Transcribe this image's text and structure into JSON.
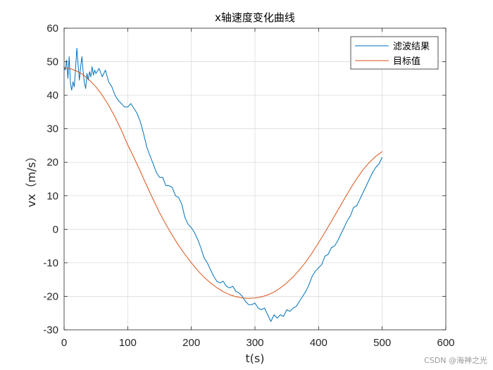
{
  "chart_data": {
    "type": "line",
    "title": "x轴速度变化曲线",
    "xlabel": "t(s)",
    "ylabel": "vx（m/s）",
    "xlim": [
      0,
      600
    ],
    "ylim": [
      -30,
      60
    ],
    "xticks": [
      0,
      100,
      200,
      300,
      400,
      500,
      600
    ],
    "yticks": [
      -30,
      -20,
      -10,
      0,
      10,
      20,
      30,
      40,
      50,
      60
    ],
    "grid": true,
    "legend_position": "top-right",
    "series": [
      {
        "name": "滤波结果",
        "color": "#0072BD",
        "x": [
          0,
          2,
          4,
          6,
          8,
          10,
          12,
          14,
          16,
          18,
          20,
          22,
          24,
          26,
          28,
          30,
          32,
          34,
          36,
          38,
          40,
          42,
          44,
          46,
          48,
          50,
          55,
          60,
          65,
          70,
          75,
          80,
          85,
          90,
          95,
          100,
          105,
          110,
          115,
          120,
          125,
          130,
          135,
          140,
          145,
          150,
          155,
          160,
          165,
          170,
          175,
          180,
          185,
          190,
          195,
          200,
          205,
          210,
          215,
          220,
          225,
          230,
          235,
          240,
          245,
          250,
          255,
          260,
          265,
          270,
          275,
          280,
          285,
          290,
          295,
          300,
          305,
          310,
          315,
          320,
          325,
          330,
          335,
          340,
          345,
          350,
          355,
          360,
          365,
          370,
          375,
          380,
          385,
          390,
          395,
          400,
          405,
          410,
          415,
          420,
          425,
          430,
          435,
          440,
          445,
          450,
          455,
          460,
          465,
          470,
          475,
          480,
          485,
          490,
          495,
          500
        ],
        "values": [
          48.5,
          47.5,
          50.5,
          45.0,
          51.5,
          43.5,
          41.5,
          44.0,
          42.5,
          48.0,
          54.0,
          49.0,
          44.5,
          48.5,
          51.5,
          47.0,
          43.5,
          42.0,
          46.5,
          44.5,
          47.0,
          45.5,
          48.5,
          46.0,
          47.5,
          46.5,
          48.0,
          45.5,
          47.5,
          44.0,
          42.5,
          40.0,
          38.5,
          37.5,
          36.5,
          36.5,
          37.5,
          36.0,
          34.5,
          32.0,
          28.5,
          24.5,
          22.0,
          19.5,
          17.0,
          15.5,
          15.5,
          13.0,
          13.0,
          12.5,
          10.0,
          9.5,
          7.5,
          3.5,
          1.5,
          0.5,
          -1.0,
          -3.0,
          -5.5,
          -8.5,
          -10.0,
          -12.0,
          -14.0,
          -15.5,
          -16.0,
          -15.5,
          -17.0,
          -17.5,
          -17.0,
          -18.5,
          -19.0,
          -20.0,
          -21.5,
          -22.5,
          -22.5,
          -22.0,
          -23.5,
          -24.0,
          -23.5,
          -25.5,
          -27.5,
          -25.5,
          -26.5,
          -25.5,
          -26.0,
          -24.0,
          -24.5,
          -23.5,
          -23.0,
          -21.5,
          -20.0,
          -18.5,
          -16.5,
          -14.0,
          -12.5,
          -11.5,
          -10.5,
          -8.0,
          -7.5,
          -5.5,
          -5.0,
          -3.5,
          -1.5,
          0.5,
          2.5,
          4.0,
          6.5,
          7.0,
          9.0,
          11.0,
          13.0,
          15.0,
          17.0,
          18.5,
          19.5,
          21.5
        ]
      },
      {
        "name": "目标值",
        "color": "#D95319",
        "x": [
          0,
          10,
          20,
          30,
          40,
          50,
          60,
          70,
          80,
          90,
          100,
          110,
          120,
          130,
          140,
          150,
          160,
          170,
          180,
          190,
          200,
          210,
          220,
          230,
          240,
          250,
          260,
          270,
          280,
          290,
          300,
          310,
          320,
          330,
          340,
          350,
          360,
          370,
          380,
          390,
          400,
          410,
          420,
          430,
          440,
          450,
          460,
          470,
          480,
          490,
          500
        ],
        "values": [
          48.2,
          47.9,
          47.2,
          46.1,
          44.5,
          42.5,
          40.0,
          37.0,
          33.5,
          29.6,
          25.2,
          21.3,
          17.2,
          13.0,
          8.9,
          5.0,
          1.5,
          -1.8,
          -4.8,
          -7.5,
          -10.0,
          -12.3,
          -14.3,
          -16.0,
          -17.4,
          -18.6,
          -19.5,
          -20.1,
          -20.5,
          -20.6,
          -20.5,
          -20.2,
          -19.6,
          -18.7,
          -17.5,
          -16.0,
          -14.2,
          -12.1,
          -9.7,
          -7.0,
          -4.0,
          -0.9,
          2.3,
          5.6,
          8.9,
          12.1,
          15.1,
          17.8,
          20.0,
          21.8,
          23.2
        ]
      }
    ]
  },
  "watermark": "CSDN @海神之光"
}
